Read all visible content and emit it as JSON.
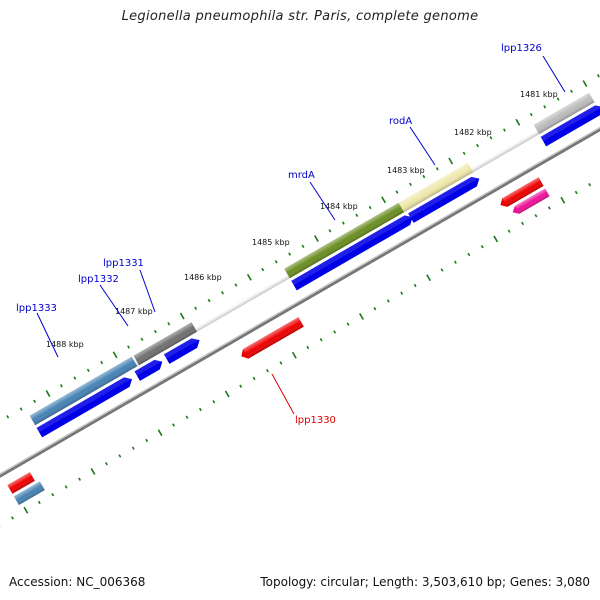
{
  "title": "Legionella pneumophila str. Paris, complete genome",
  "footer": {
    "accession": "Accession: NC_006368",
    "summary": "Topology: circular; Length: 3,503,610 bp; Genes: 3,080"
  },
  "kbp_labels": [
    "1481 kbp",
    "1482 kbp",
    "1483 kbp",
    "1484 kbp",
    "1485 kbp",
    "1486 kbp",
    "1487 kbp",
    "1488 kbp"
  ],
  "gene_labels": [
    {
      "text": "lpp1326",
      "color": "#0000cc"
    },
    {
      "text": "rodA",
      "color": "#0000cc"
    },
    {
      "text": "mrdA",
      "color": "#0000cc"
    },
    {
      "text": "lpp1331",
      "color": "#0000cc"
    },
    {
      "text": "lpp1332",
      "color": "#0000cc"
    },
    {
      "text": "lpp1333",
      "color": "#0000cc"
    },
    {
      "text": "lpp1330",
      "color": "#dd0000"
    }
  ],
  "colors": {
    "backbone": "#777777",
    "cds_blue": "#0000e6",
    "tick_green": "#1a7a1a",
    "olive": "#6b8e23",
    "khaki": "#eee8aa",
    "steelblue": "#4682b4",
    "gray": "#707070",
    "red": "#ee0000",
    "magenta": "#ee1199",
    "silver": "#bbbbbb"
  }
}
